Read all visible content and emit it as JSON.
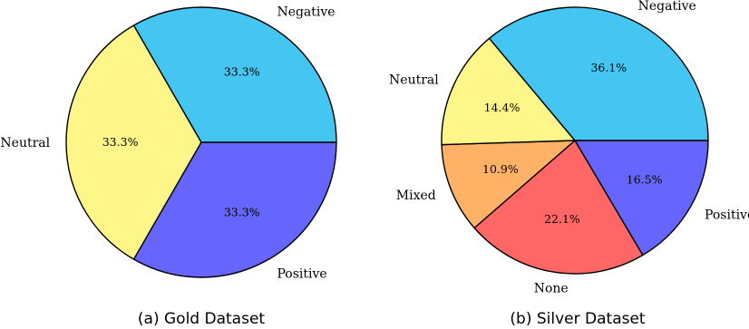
{
  "chart_data": [
    {
      "type": "pie",
      "caption": "(a) Gold Dataset",
      "slices": [
        {
          "label": "Positive",
          "value": 33.3,
          "display": "33.3%",
          "color": "#6666FF"
        },
        {
          "label": "Neutral",
          "value": 33.3,
          "display": "33.3%",
          "color": "#FFF68A"
        },
        {
          "label": "Negative",
          "value": 33.3,
          "display": "33.3%",
          "color": "#44C5F2"
        }
      ]
    },
    {
      "type": "pie",
      "caption": "(b) Silver Dataset",
      "slices": [
        {
          "label": "Positive",
          "value": 16.5,
          "display": "16.5%",
          "color": "#6666FF"
        },
        {
          "label": "None",
          "value": 22.1,
          "display": "22.1%",
          "color": "#FF6666"
        },
        {
          "label": "Mixed",
          "value": 10.9,
          "display": "10.9%",
          "color": "#FFB266"
        },
        {
          "label": "Neutral",
          "value": 14.4,
          "display": "14.4%",
          "color": "#FFF68A"
        },
        {
          "label": "Negative",
          "value": 36.1,
          "display": "36.1%",
          "color": "#44C5F2"
        }
      ]
    }
  ]
}
